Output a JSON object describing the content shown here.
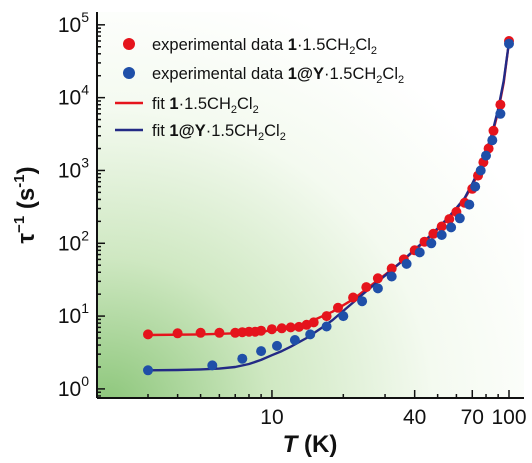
{
  "chart_data": {
    "type": "scatter",
    "xscale": "log",
    "yscale": "log",
    "xlim": [
      3,
      100
    ],
    "ylim": [
      0.75,
      150000
    ],
    "xticks": [
      10,
      40,
      70,
      100
    ],
    "xtick_labels": [
      "10",
      "40",
      "70",
      "100"
    ],
    "yticks": [
      1,
      10,
      100,
      1000,
      10000,
      100000
    ],
    "ytick_labels": [
      {
        "base": "10",
        "exp": "0"
      },
      {
        "base": "10",
        "exp": "1"
      },
      {
        "base": "10",
        "exp": "2"
      },
      {
        "base": "10",
        "exp": "3"
      },
      {
        "base": "10",
        "exp": "4"
      },
      {
        "base": "10",
        "exp": "5"
      }
    ],
    "xlabel": {
      "symbol": "T",
      "unit": " (K)"
    },
    "ylabel": {
      "sym": "τ",
      "sup1": "−1",
      "unit_open": " (s",
      "sup2": "-1",
      "unit_close": ")"
    },
    "legend_position": "top-left",
    "series": [
      {
        "name": "experimental data 1·1.5CH2Cl2",
        "legend": {
          "pre": "experimental data ",
          "bold": "1",
          "post": "·1.5CH",
          "sub1": "2",
          "mid": "Cl",
          "sub2": "2"
        },
        "kind": "points",
        "color": "#e5141c",
        "x": [
          3.0,
          4.0,
          5.0,
          6.0,
          7.0,
          7.5,
          8.0,
          8.5,
          9.0,
          10.0,
          11.0,
          12.0,
          13.0,
          14.0,
          15.0,
          17.0,
          19.0,
          22.0,
          25.0,
          28.0,
          32.0,
          36.0,
          40.0,
          44.0,
          48.0,
          52.0,
          56.0,
          60.0,
          65.0,
          70.0,
          74.0,
          78.0,
          82.0,
          86.0,
          92.0,
          100.0
        ],
        "y": [
          5.6,
          5.8,
          5.9,
          5.9,
          5.9,
          6.0,
          6.1,
          6.1,
          6.3,
          6.6,
          6.8,
          7.0,
          7.1,
          7.6,
          8.2,
          10.0,
          13.0,
          18.0,
          25.0,
          33.0,
          45.0,
          60.0,
          80.0,
          105.0,
          135.0,
          170.0,
          215.0,
          270.0,
          360.0,
          560.0,
          850.0,
          1300.0,
          2000.0,
          3500.0,
          8000.0,
          60000.0
        ]
      },
      {
        "name": "experimental data 1@Y·1.5CH2Cl2",
        "legend": {
          "pre": "experimental data ",
          "bold": "1@Y",
          "post": "·1.5CH",
          "sub1": "2",
          "mid": "Cl",
          "sub2": "2"
        },
        "kind": "points",
        "color": "#1f4fa8",
        "x": [
          3.0,
          5.6,
          7.5,
          9.0,
          10.5,
          12.5,
          14.5,
          17.0,
          20.0,
          24.0,
          28.0,
          32.0,
          37.0,
          42.0,
          47.0,
          52.0,
          57.0,
          62.0,
          68.0,
          72.0,
          76.0,
          80.0,
          85.0,
          92.0,
          100.0
        ],
        "y": [
          1.8,
          2.1,
          2.6,
          3.3,
          3.9,
          4.7,
          5.6,
          7.2,
          10.0,
          16.0,
          24.0,
          35.0,
          52.0,
          75.0,
          100.0,
          130.0,
          165.0,
          220.0,
          340.0,
          600.0,
          1000.0,
          1600.0,
          2600.0,
          6000.0,
          55000.0
        ]
      },
      {
        "name": "fit 1·1.5CH2Cl2",
        "legend": {
          "pre": "fit ",
          "bold": "1",
          "post": "·1.5CH",
          "sub1": "2",
          "mid": "Cl",
          "sub2": "2"
        },
        "kind": "line",
        "color": "#e5141c",
        "x": [
          3.0,
          5.0,
          7.0,
          9.0,
          11.0,
          13.0,
          15.0,
          18.0,
          22.0,
          26.0,
          30.0,
          35.0,
          40.0,
          45.0,
          50.0,
          55.0,
          60.0,
          65.0,
          70.0,
          75.0,
          80.0,
          85.0,
          90.0,
          95.0,
          100.0
        ],
        "y": [
          5.5,
          5.6,
          5.8,
          6.1,
          6.6,
          7.5,
          8.8,
          11.5,
          17.0,
          26.0,
          37.0,
          55.0,
          80.0,
          112.0,
          155.0,
          210.0,
          290.0,
          410.0,
          620.0,
          1000.0,
          1700.0,
          3100.0,
          6500.0,
          16000.0,
          58000.0
        ]
      },
      {
        "name": "fit 1@Y·1.5CH2Cl2",
        "legend": {
          "pre": "fit ",
          "bold": "1@Y",
          "post": "·1.5CH",
          "sub1": "2",
          "mid": "Cl",
          "sub2": "2"
        },
        "kind": "line",
        "color": "#232a85",
        "x": [
          3.0,
          4.0,
          5.0,
          6.0,
          7.0,
          8.0,
          9.0,
          10.0,
          11.0,
          12.0,
          14.0,
          16.0,
          18.0,
          21.0,
          25.0,
          30.0,
          35.0,
          40.0,
          45.0,
          50.0,
          55.0,
          60.0,
          65.0,
          70.0,
          75.0,
          80.0,
          85.0,
          90.0,
          95.0,
          100.0
        ],
        "y": [
          1.8,
          1.82,
          1.85,
          1.9,
          2.0,
          2.2,
          2.5,
          2.9,
          3.3,
          3.8,
          5.0,
          6.7,
          8.8,
          13.5,
          22.0,
          36.0,
          55.0,
          82.0,
          115.0,
          160.0,
          220.0,
          305.0,
          420.0,
          660.0,
          1050.0,
          1800.0,
          3300.0,
          7000.0,
          17000.0,
          58000.0
        ]
      }
    ]
  }
}
